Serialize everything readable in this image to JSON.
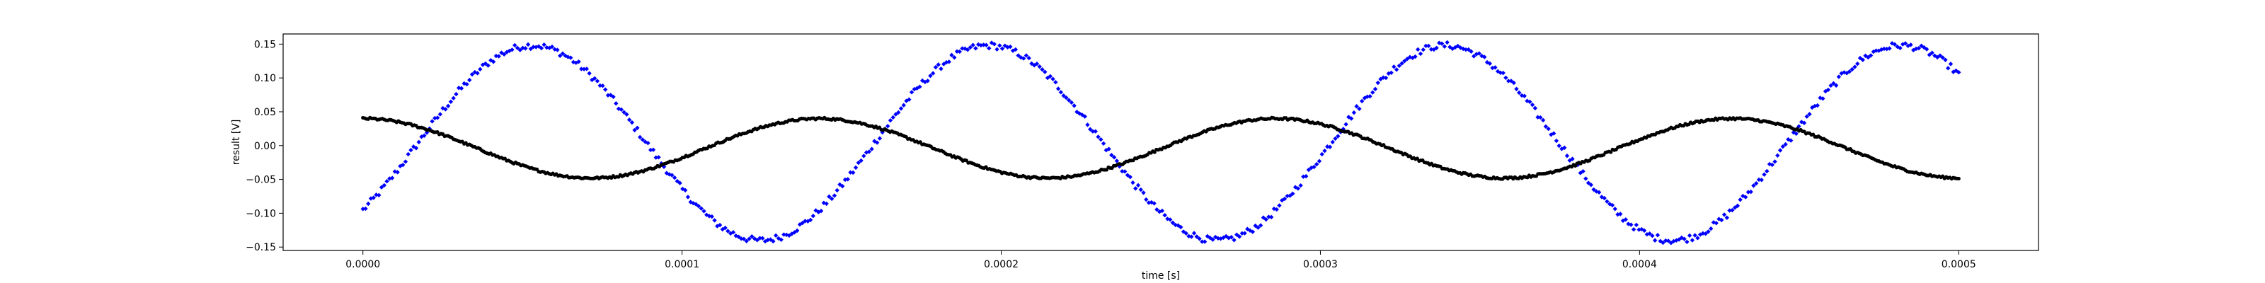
{
  "chart_data": {
    "type": "scatter",
    "xlabel": "time [s]",
    "ylabel": "result [V]",
    "xlim": [
      -2.5e-05,
      0.000525
    ],
    "ylim": [
      -0.155,
      0.165
    ],
    "x_ticks": [
      0.0,
      0.0001,
      0.0002,
      0.0003,
      0.0004,
      0.0005
    ],
    "x_tick_labels": [
      "0.0000",
      "0.0001",
      "0.0002",
      "0.0003",
      "0.0004",
      "0.0005"
    ],
    "y_ticks": [
      -0.15,
      -0.1,
      -0.05,
      0.0,
      0.05,
      0.1,
      0.15
    ],
    "y_tick_labels": [
      "−0.15",
      "−0.10",
      "−0.05",
      "0.00",
      "0.05",
      "0.10",
      "0.15"
    ],
    "grid": false,
    "legend": "none",
    "series": [
      {
        "color": "#0000ff",
        "marker": "diamond",
        "x_start": 0.0,
        "x_end": 0.0005,
        "n_points": 600,
        "amplitude": 0.144,
        "offset": 0.004,
        "period": 0.000143,
        "phase_sin_arg": -0.76,
        "noise": 0.005
      },
      {
        "color": "#000000",
        "marker": "dot",
        "x_start": 0.0,
        "x_end": 0.0005,
        "n_points": 900,
        "amplitude": 0.044,
        "offset": -0.004,
        "period": 0.000143,
        "phase_sin_arg": 1.57,
        "noise": 0.0015
      }
    ]
  }
}
